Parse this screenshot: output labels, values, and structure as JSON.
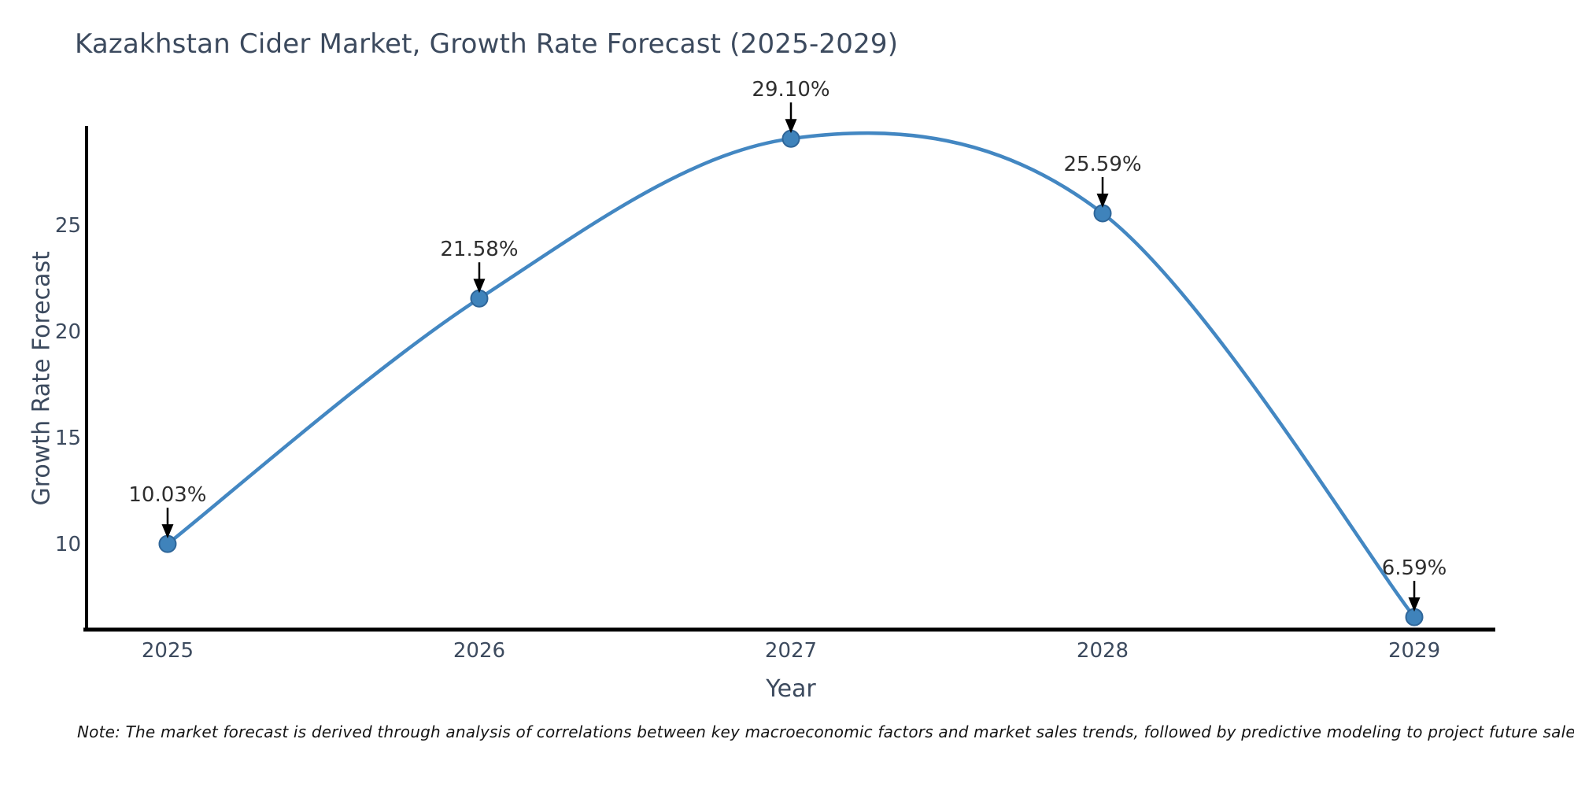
{
  "title": "Kazakhstan Cider Market, Growth Rate Forecast (2025-2029)",
  "note": "Note: The market forecast is derived through analysis of correlations between key macroeconomic factors and market sales trends, followed by predictive modeling to project future sales",
  "chart_data": {
    "type": "line",
    "title": "Kazakhstan Cider Market, Growth Rate Forecast (2025-2029)",
    "xlabel": "Year",
    "ylabel": "Growth Rate Forecast",
    "x": [
      2025,
      2026,
      2027,
      2028,
      2029
    ],
    "values": [
      10.03,
      21.58,
      29.1,
      25.59,
      6.59
    ],
    "point_labels": [
      "10.03%",
      "21.58%",
      "29.10%",
      "25.59%",
      "6.59%"
    ],
    "xticks": [
      "2025",
      "2026",
      "2027",
      "2028",
      "2029"
    ],
    "yticks": [
      10,
      15,
      20,
      25
    ],
    "xlim": [
      2024.74,
      2029.26
    ],
    "ylim": [
      6.0,
      29.7
    ],
    "grid": false,
    "legend": "none",
    "smooth": true,
    "line_color": "#4387c2",
    "marker_fill": "#3f83bb",
    "marker_edge": "#2f6699",
    "axis_color": "#000000",
    "annotation_arrow_color": "#000000"
  }
}
